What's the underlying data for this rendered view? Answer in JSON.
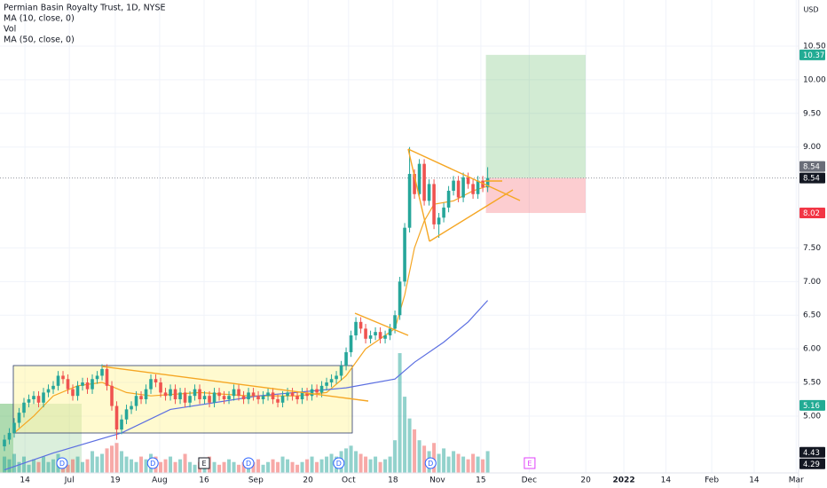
{
  "chart_data": {
    "type": "candlestick",
    "title": "Permian Basin Royalty Trust, 1D, NYSE",
    "indicators": [
      "MA (10, close, 0)",
      "Vol",
      "MA (50, close, 0)"
    ],
    "currency": "USD",
    "up_color": "#26a69a",
    "down_color": "#ef5350",
    "grid": true,
    "open": [
      4.55,
      4.65,
      4.75,
      4.9,
      5.05,
      5.2,
      5.25,
      5.3,
      5.2,
      5.35,
      5.4,
      5.45,
      5.6,
      5.55,
      5.4,
      5.3,
      5.45,
      5.5,
      5.4,
      5.55,
      5.6,
      5.7,
      5.45,
      5.15,
      4.8,
      4.95,
      5.1,
      5.15,
      5.3,
      5.25,
      5.4,
      5.55,
      5.5,
      5.35,
      5.3,
      5.4,
      5.25,
      5.35,
      5.2,
      5.3,
      5.4,
      5.25,
      5.3,
      5.2,
      5.35,
      5.3,
      5.25,
      5.3,
      5.4,
      5.3,
      5.25,
      5.35,
      5.3,
      5.25,
      5.3,
      5.35,
      5.25,
      5.2,
      5.3,
      5.35,
      5.3,
      5.25,
      5.35,
      5.3,
      5.4,
      5.35,
      5.45,
      5.5,
      5.55,
      5.6,
      5.75,
      5.95,
      6.2,
      6.4,
      6.3,
      6.15,
      6.2,
      6.25,
      6.15,
      6.2,
      6.3,
      6.5,
      7.0,
      7.8,
      8.6,
      8.3,
      8.75,
      8.2,
      8.45,
      7.85,
      7.95,
      8.1,
      8.35,
      8.5,
      8.25,
      8.55,
      8.45,
      8.3,
      8.5,
      8.4
    ],
    "high": [
      4.72,
      4.82,
      4.97,
      5.12,
      5.27,
      5.32,
      5.37,
      5.37,
      5.42,
      5.47,
      5.52,
      5.67,
      5.67,
      5.62,
      5.47,
      5.52,
      5.57,
      5.57,
      5.62,
      5.67,
      5.77,
      5.77,
      5.52,
      5.22,
      5.02,
      5.17,
      5.22,
      5.37,
      5.37,
      5.47,
      5.62,
      5.62,
      5.57,
      5.42,
      5.47,
      5.47,
      5.42,
      5.42,
      5.37,
      5.47,
      5.47,
      5.37,
      5.37,
      5.42,
      5.42,
      5.37,
      5.37,
      5.47,
      5.47,
      5.37,
      5.42,
      5.42,
      5.37,
      5.37,
      5.42,
      5.42,
      5.32,
      5.37,
      5.42,
      5.42,
      5.37,
      5.42,
      5.42,
      5.47,
      5.47,
      5.52,
      5.57,
      5.62,
      5.67,
      5.82,
      6.02,
      6.27,
      6.47,
      6.47,
      6.37,
      6.27,
      6.32,
      6.32,
      6.27,
      6.37,
      6.57,
      7.07,
      7.87,
      9.0,
      8.67,
      8.82,
      8.82,
      8.52,
      8.52,
      8.02,
      8.17,
      8.42,
      8.57,
      8.57,
      8.62,
      8.62,
      8.52,
      8.57,
      8.57,
      8.7
    ],
    "low": [
      4.48,
      4.58,
      4.68,
      4.83,
      4.98,
      5.13,
      5.18,
      5.13,
      5.13,
      5.28,
      5.33,
      5.38,
      5.48,
      5.33,
      5.23,
      5.23,
      5.38,
      5.33,
      5.33,
      5.48,
      5.53,
      5.38,
      5.08,
      4.65,
      4.73,
      4.88,
      5.03,
      5.08,
      5.18,
      5.18,
      5.33,
      5.43,
      5.28,
      5.23,
      5.23,
      5.18,
      5.18,
      5.13,
      5.13,
      5.23,
      5.18,
      5.18,
      5.13,
      5.13,
      5.23,
      5.18,
      5.18,
      5.23,
      5.23,
      5.18,
      5.18,
      5.23,
      5.18,
      5.18,
      5.23,
      5.18,
      5.13,
      5.13,
      5.23,
      5.23,
      5.18,
      5.18,
      5.23,
      5.23,
      5.28,
      5.28,
      5.38,
      5.43,
      5.48,
      5.53,
      5.68,
      5.88,
      6.13,
      6.23,
      6.08,
      6.08,
      6.13,
      6.08,
      6.08,
      6.13,
      6.23,
      6.43,
      6.93,
      7.73,
      8.23,
      8.23,
      8.13,
      8.13,
      7.78,
      7.65,
      7.88,
      8.03,
      8.28,
      8.18,
      8.18,
      8.38,
      8.23,
      8.23,
      8.33,
      8.33
    ],
    "close": [
      4.65,
      4.75,
      4.9,
      5.05,
      5.2,
      5.25,
      5.3,
      5.2,
      5.35,
      5.4,
      5.45,
      5.6,
      5.55,
      5.4,
      5.3,
      5.45,
      5.5,
      5.4,
      5.55,
      5.6,
      5.7,
      5.45,
      5.15,
      4.8,
      4.95,
      5.1,
      5.15,
      5.3,
      5.25,
      5.4,
      5.55,
      5.5,
      5.35,
      5.3,
      5.4,
      5.25,
      5.35,
      5.2,
      5.3,
      5.4,
      5.25,
      5.3,
      5.2,
      5.35,
      5.3,
      5.25,
      5.3,
      5.4,
      5.3,
      5.25,
      5.35,
      5.3,
      5.25,
      5.3,
      5.35,
      5.25,
      5.2,
      5.3,
      5.35,
      5.3,
      5.25,
      5.35,
      5.3,
      5.4,
      5.35,
      5.45,
      5.5,
      5.55,
      5.6,
      5.75,
      5.95,
      6.2,
      6.4,
      6.3,
      6.15,
      6.2,
      6.25,
      6.15,
      6.2,
      6.3,
      6.5,
      7.0,
      7.8,
      8.6,
      8.3,
      8.75,
      8.2,
      8.45,
      7.85,
      7.95,
      8.1,
      8.35,
      8.5,
      8.25,
      8.55,
      8.45,
      8.3,
      8.5,
      8.4,
      8.54
    ],
    "volume": [
      0.3,
      0.25,
      0.35,
      0.2,
      0.3,
      0.15,
      0.25,
      0.2,
      0.3,
      0.2,
      0.25,
      0.35,
      0.2,
      0.15,
      0.25,
      0.3,
      0.2,
      0.25,
      0.4,
      0.3,
      0.35,
      0.45,
      0.5,
      0.55,
      0.4,
      0.3,
      0.25,
      0.2,
      0.3,
      0.25,
      0.35,
      0.3,
      0.2,
      0.25,
      0.3,
      0.2,
      0.25,
      0.35,
      0.2,
      0.15,
      0.2,
      0.25,
      0.3,
      0.2,
      0.15,
      0.2,
      0.25,
      0.2,
      0.15,
      0.2,
      0.15,
      0.2,
      0.25,
      0.15,
      0.2,
      0.25,
      0.2,
      0.3,
      0.25,
      0.2,
      0.15,
      0.2,
      0.25,
      0.3,
      0.2,
      0.25,
      0.3,
      0.35,
      0.3,
      0.4,
      0.45,
      0.5,
      0.4,
      0.35,
      0.3,
      0.25,
      0.3,
      0.2,
      0.25,
      0.3,
      0.6,
      2.2,
      1.4,
      1.0,
      0.8,
      0.6,
      0.5,
      0.4,
      0.55,
      0.35,
      0.45,
      0.3,
      0.4,
      0.35,
      0.3,
      0.25,
      0.35,
      0.3,
      0.25,
      0.4
    ],
    "series": [
      {
        "name": "MA (10, close, 0)",
        "color": "#f5a623",
        "x": [
          2,
          6,
          10,
          15,
          20,
          25,
          30,
          40,
          50,
          60,
          66,
          70,
          74,
          78,
          80,
          82,
          84,
          86,
          88,
          92,
          96,
          99
        ],
        "values": [
          4.75,
          5.0,
          5.3,
          5.45,
          5.5,
          5.35,
          5.3,
          5.35,
          5.3,
          5.3,
          5.35,
          5.6,
          6.0,
          6.2,
          6.3,
          6.8,
          7.5,
          7.9,
          8.15,
          8.2,
          8.35,
          8.42
        ]
      },
      {
        "name": "MA (50, close, 0)",
        "color": "#5b6ee1",
        "x": [
          0,
          10,
          24,
          34,
          52,
          70,
          80,
          84,
          90,
          95,
          99
        ],
        "values": [
          4.2,
          4.45,
          4.75,
          5.1,
          5.3,
          5.42,
          5.55,
          5.8,
          6.1,
          6.4,
          6.72
        ]
      }
    ],
    "ylim": [
      4.155,
      11.186
    ],
    "yticks": [
      {
        "value": 10.5,
        "label": "10.50"
      },
      {
        "value": 10.0,
        "label": "10.00"
      },
      {
        "value": 9.5,
        "label": "9.50"
      },
      {
        "value": 9.0,
        "label": "9.00"
      },
      {
        "value": 7.5,
        "label": "7.50"
      },
      {
        "value": 7.0,
        "label": "7.00"
      },
      {
        "value": 6.5,
        "label": "6.50"
      },
      {
        "value": 6.0,
        "label": "6.00"
      },
      {
        "value": 5.5,
        "label": "5.50"
      },
      {
        "value": 5.0,
        "label": "5.00"
      }
    ],
    "xlim": [
      -0.91,
      162.7
    ],
    "xticks": [
      {
        "value": 4.2,
        "label": "14"
      },
      {
        "value": 13.3,
        "label": "Jul"
      },
      {
        "value": 22.7,
        "label": "19"
      },
      {
        "value": 31.8,
        "label": "Aug"
      },
      {
        "value": 40.9,
        "label": "16"
      },
      {
        "value": 51.5,
        "label": "Sep"
      },
      {
        "value": 62.2,
        "label": "20"
      },
      {
        "value": 70.5,
        "label": "Oct"
      },
      {
        "value": 79.6,
        "label": "18"
      },
      {
        "value": 88.7,
        "label": "Nov"
      },
      {
        "value": 97.6,
        "label": "15"
      },
      {
        "value": 107.5,
        "label": "Dec"
      },
      {
        "value": 119.1,
        "label": "20"
      },
      {
        "value": 126.9,
        "label": "2022",
        "bold": true
      },
      {
        "value": 135.5,
        "label": "14"
      },
      {
        "value": 144.9,
        "label": "Feb"
      },
      {
        "value": 153.6,
        "label": "14"
      },
      {
        "value": 162.2,
        "label": "Mar"
      }
    ],
    "price_tags": [
      {
        "value": 10.37,
        "color": "#22ab94"
      },
      {
        "value": 8.54,
        "color": "#6a6d78"
      },
      {
        "value": 8.54,
        "color": "#131722"
      },
      {
        "value": 8.02,
        "color": "#f23645"
      },
      {
        "value": 5.16,
        "color": "#22ab94"
      },
      {
        "value": 4.43,
        "color": "#131722"
      },
      {
        "value": 4.29,
        "color": "#131722"
      }
    ],
    "events": [
      {
        "label": "D",
        "index": 11.8,
        "color": "#2962ff"
      },
      {
        "label": "D",
        "index": 30.4,
        "color": "#2962ff"
      },
      {
        "label": "E",
        "index": 40.9,
        "color": "#131722"
      },
      {
        "label": "D",
        "index": 50,
        "color": "#2962ff"
      },
      {
        "label": "D",
        "index": 68.5,
        "color": "#2962ff"
      },
      {
        "label": "D",
        "index": 87.3,
        "color": "#2962ff"
      },
      {
        "label": "E",
        "index": 107.6,
        "color": "#e040fb"
      }
    ]
  }
}
